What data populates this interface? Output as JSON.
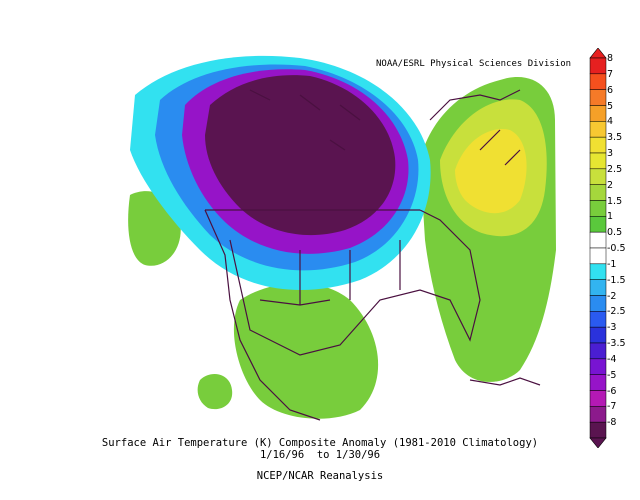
{
  "credit": "NOAA/ESRL Physical Sciences Division",
  "caption": {
    "line1": "Surface Air Temperature (K) Composite Anomaly (1981-2010 Climatology)",
    "line2": "1/16/96  to 1/30/96",
    "line3": "NCEP/NCAR Reanalysis"
  },
  "colorbar": {
    "labels": [
      "8",
      "7",
      "6",
      "5",
      "4",
      "3.5",
      "3",
      "2.5",
      "2",
      "1.5",
      "1",
      "0.5",
      "-0.5",
      "-1",
      "-1.5",
      "-2",
      "-2.5",
      "-3",
      "-3.5",
      "-4",
      "-5",
      "-6",
      "-7",
      "-8"
    ],
    "colors": [
      "#e62020",
      "#f5501e",
      "#f57a28",
      "#f5a028",
      "#f7c832",
      "#f0e032",
      "#e6e632",
      "#c8e03c",
      "#a5d73c",
      "#78cd3c",
      "#5ac83c",
      "#ffffff",
      "#ffffff",
      "#32e1f0",
      "#32b4f0",
      "#2a8cf0",
      "#2a5af0",
      "#2a32dc",
      "#4a1ed2",
      "#7814d2",
      "#9614c8",
      "#b419b4",
      "#8c1a8c",
      "#5a1450"
    ]
  }
}
